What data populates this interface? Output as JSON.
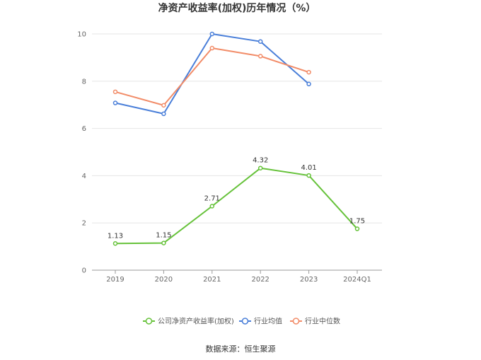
{
  "chart_data": {
    "type": "line",
    "title": "净资产收益率(加权)历年情况（%）",
    "categories": [
      "2019",
      "2020",
      "2021",
      "2022",
      "2023",
      "2024Q1"
    ],
    "ylim": [
      0,
      10
    ],
    "yticks": [
      0,
      2,
      4,
      6,
      8,
      10
    ],
    "grid": true,
    "legend_position": "bottom",
    "series": [
      {
        "name": "公司净资产收益率(加权)",
        "color": "#66c23a",
        "values": [
          1.13,
          1.15,
          2.71,
          4.32,
          4.01,
          1.75
        ],
        "labels": [
          "1.13",
          "1.15",
          "2.71",
          "4.32",
          "4.01",
          "1.75"
        ]
      },
      {
        "name": "行业均值",
        "color": "#4a7fd9",
        "values": [
          7.08,
          6.62,
          10.0,
          9.68,
          7.88,
          null
        ]
      },
      {
        "name": "行业中位数",
        "color": "#f28c68",
        "values": [
          7.55,
          6.98,
          9.4,
          9.06,
          8.38,
          null
        ]
      }
    ],
    "source": "数据来源：恒生聚源"
  }
}
